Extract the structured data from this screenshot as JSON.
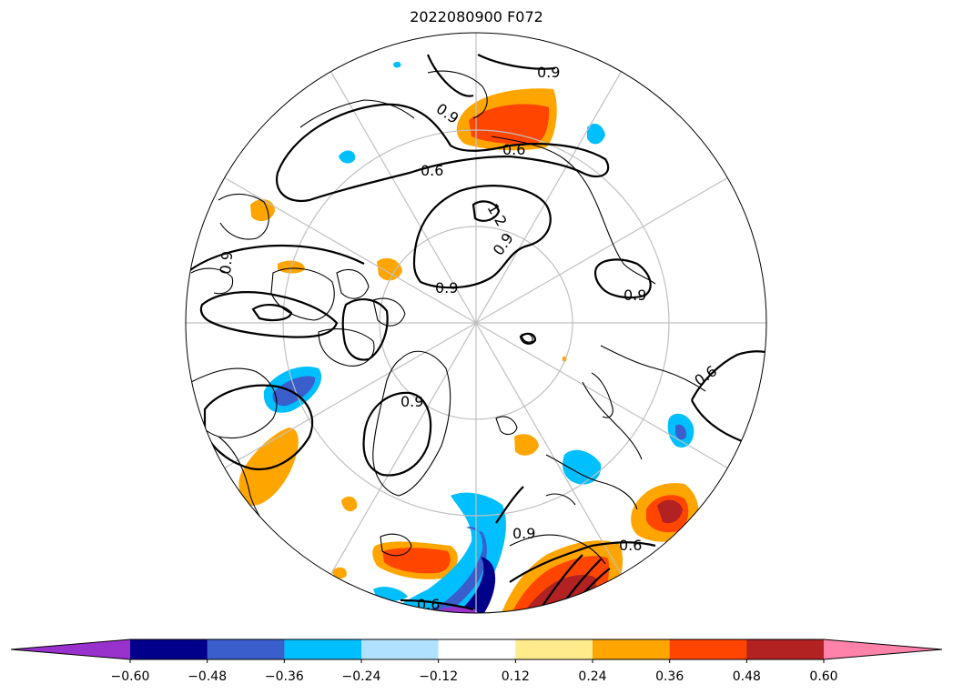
{
  "chart_data": {
    "type": "heatmap",
    "title": "2022080900 F072",
    "projection": "north polar stereographic (circular boundary)",
    "grid": true,
    "colorbar": {
      "orientation": "horizontal",
      "position": "bottom",
      "extend": "both",
      "levels": [
        -0.6,
        -0.48,
        -0.36,
        -0.24,
        -0.12,
        0.12,
        0.24,
        0.36,
        0.48,
        0.6
      ],
      "tick_labels": [
        "−0.60",
        "−0.48",
        "−0.36",
        "−0.24",
        "−0.12",
        "0.12",
        "0.24",
        "0.36",
        "0.48",
        "0.60"
      ],
      "colors": [
        "#9932cc",
        "#00008b",
        "#3a5fcd",
        "#00bfff",
        "#b0e2ff",
        "#ffffff",
        "#ffeb8c",
        "#ffa500",
        "#ff4500",
        "#b22222",
        "#ff82ab"
      ]
    },
    "contour_levels": [
      0.6,
      0.9,
      1.2
    ],
    "contour_labels": [
      "0.6",
      "0.9",
      "1.2"
    ]
  }
}
